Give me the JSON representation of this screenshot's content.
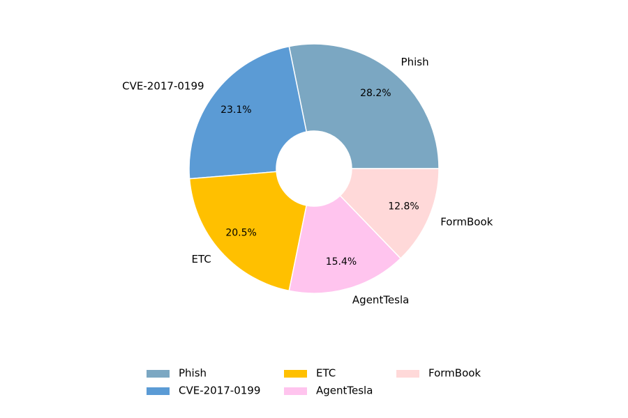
{
  "chart_data": {
    "type": "pie",
    "donut": true,
    "start_angle_deg": 0,
    "direction": "counterclockwise",
    "slices": [
      {
        "label": "Phish",
        "value": 28.2,
        "pct_label": "28.2%",
        "color": "#7BA7C2"
      },
      {
        "label": "CVE-2017-0199",
        "value": 23.1,
        "pct_label": "23.1%",
        "color": "#5B9BD5"
      },
      {
        "label": "ETC",
        "value": 20.5,
        "pct_label": "20.5%",
        "color": "#FFC000"
      },
      {
        "label": "AgentTesla",
        "value": 15.4,
        "pct_label": "15.4%",
        "color": "#FFC4EE"
      },
      {
        "label": "FormBook",
        "value": 12.8,
        "pct_label": "12.8%",
        "color": "#FFD9D9"
      }
    ],
    "legend": {
      "placement": "bottom-center",
      "columns": 3,
      "entries": [
        "Phish",
        "CVE-2017-0199",
        "ETC",
        "AgentTesla",
        "FormBook"
      ]
    }
  }
}
